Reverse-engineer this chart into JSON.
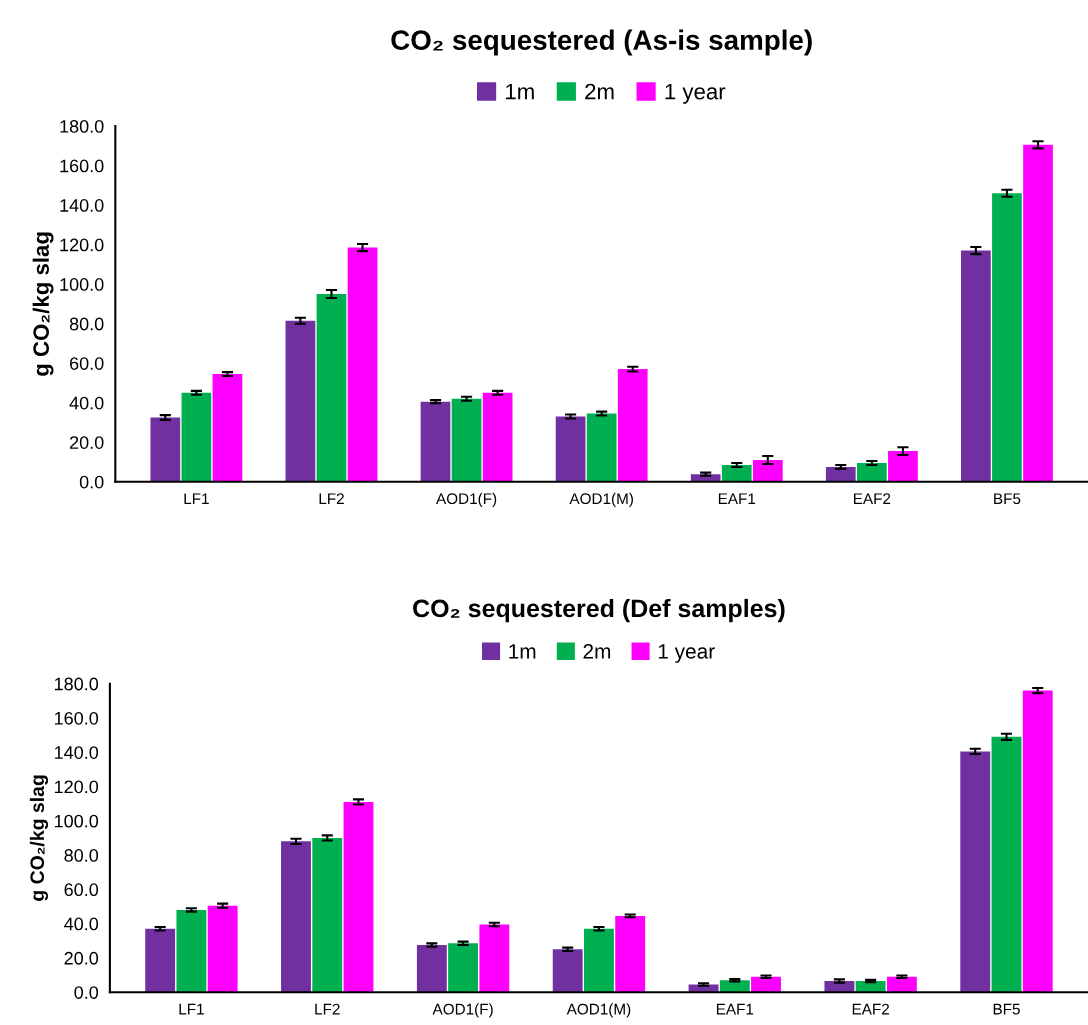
{
  "chart_data": [
    {
      "type": "bar",
      "title": "CO₂ sequestered (As-is sample)",
      "ylabel": "g CO₂/kg slag",
      "categories": [
        "LF1",
        "LF2",
        "AOD1(F)",
        "AOD1(M)",
        "EAF1",
        "EAF2",
        "BF5"
      ],
      "ylim": [
        0,
        180
      ],
      "yticks": [
        {
          "value": 0,
          "label": "0.0"
        },
        {
          "value": 20,
          "label": "20.0"
        },
        {
          "value": 40,
          "label": "40.0"
        },
        {
          "value": 60,
          "label": "60.0"
        },
        {
          "value": 80,
          "label": "80.0"
        },
        {
          "value": 100,
          "label": "100.0"
        },
        {
          "value": 120,
          "label": "120.0"
        },
        {
          "value": 140,
          "label": "140.0"
        },
        {
          "value": 160,
          "label": "160.0"
        },
        {
          "value": 180,
          "label": "180.0"
        }
      ],
      "grid": false,
      "legend": "top",
      "series": [
        {
          "name": "1m",
          "color": "#7030a0",
          "values": [
            32.5,
            81.5,
            40.5,
            33,
            3.8,
            7.5,
            117
          ],
          "errors": [
            1.2,
            1.5,
            0.8,
            1,
            0.8,
            1,
            1.8
          ]
        },
        {
          "name": "2m",
          "color": "#00b050",
          "values": [
            45,
            95,
            42,
            34.5,
            8.5,
            9.5,
            146
          ],
          "errors": [
            1,
            2,
            1,
            1,
            1,
            1,
            1.8
          ]
        },
        {
          "name": "1 year",
          "color": "#ff00ff",
          "values": [
            54.5,
            118.5,
            45,
            57,
            11,
            15.5,
            170.5
          ],
          "errors": [
            1,
            1.8,
            1,
            1.2,
            2,
            2,
            1.8
          ]
        }
      ]
    },
    {
      "type": "bar",
      "title": "CO₂ sequestered (Def samples)",
      "ylabel": "g CO₂/kg slag",
      "categories": [
        "LF1",
        "LF2",
        "AOD1(F)",
        "AOD1(M)",
        "EAF1",
        "EAF2",
        "BF5"
      ],
      "ylim": [
        0,
        180
      ],
      "yticks": [
        {
          "value": 0,
          "label": "0.0"
        },
        {
          "value": 20,
          "label": "20.0"
        },
        {
          "value": 40,
          "label": "40.0"
        },
        {
          "value": 60,
          "label": "60.0"
        },
        {
          "value": 80,
          "label": "80.0"
        },
        {
          "value": 100,
          "label": "100.0"
        },
        {
          "value": 120,
          "label": "120.0"
        },
        {
          "value": 140,
          "label": "140.0"
        },
        {
          "value": 160,
          "label": "160.0"
        },
        {
          "value": 180,
          "label": "180.0"
        }
      ],
      "grid": false,
      "legend": "top",
      "series": [
        {
          "name": "1m",
          "color": "#7030a0",
          "values": [
            37,
            88,
            27.5,
            25,
            4.5,
            6.5,
            140.5
          ],
          "errors": [
            1,
            1.5,
            1,
            1,
            0.7,
            1,
            1.5
          ]
        },
        {
          "name": "2m",
          "color": "#00b050",
          "values": [
            48,
            90,
            28.5,
            37,
            7,
            6.5,
            149
          ],
          "errors": [
            1,
            1.5,
            1,
            1,
            0.7,
            0.7,
            1.8
          ]
        },
        {
          "name": "1 year",
          "color": "#ff00ff",
          "values": [
            50.5,
            111,
            39.5,
            44.5,
            9,
            9,
            176
          ],
          "errors": [
            1.2,
            1.5,
            1,
            0.8,
            0.7,
            0.7,
            1.5
          ]
        }
      ]
    }
  ]
}
